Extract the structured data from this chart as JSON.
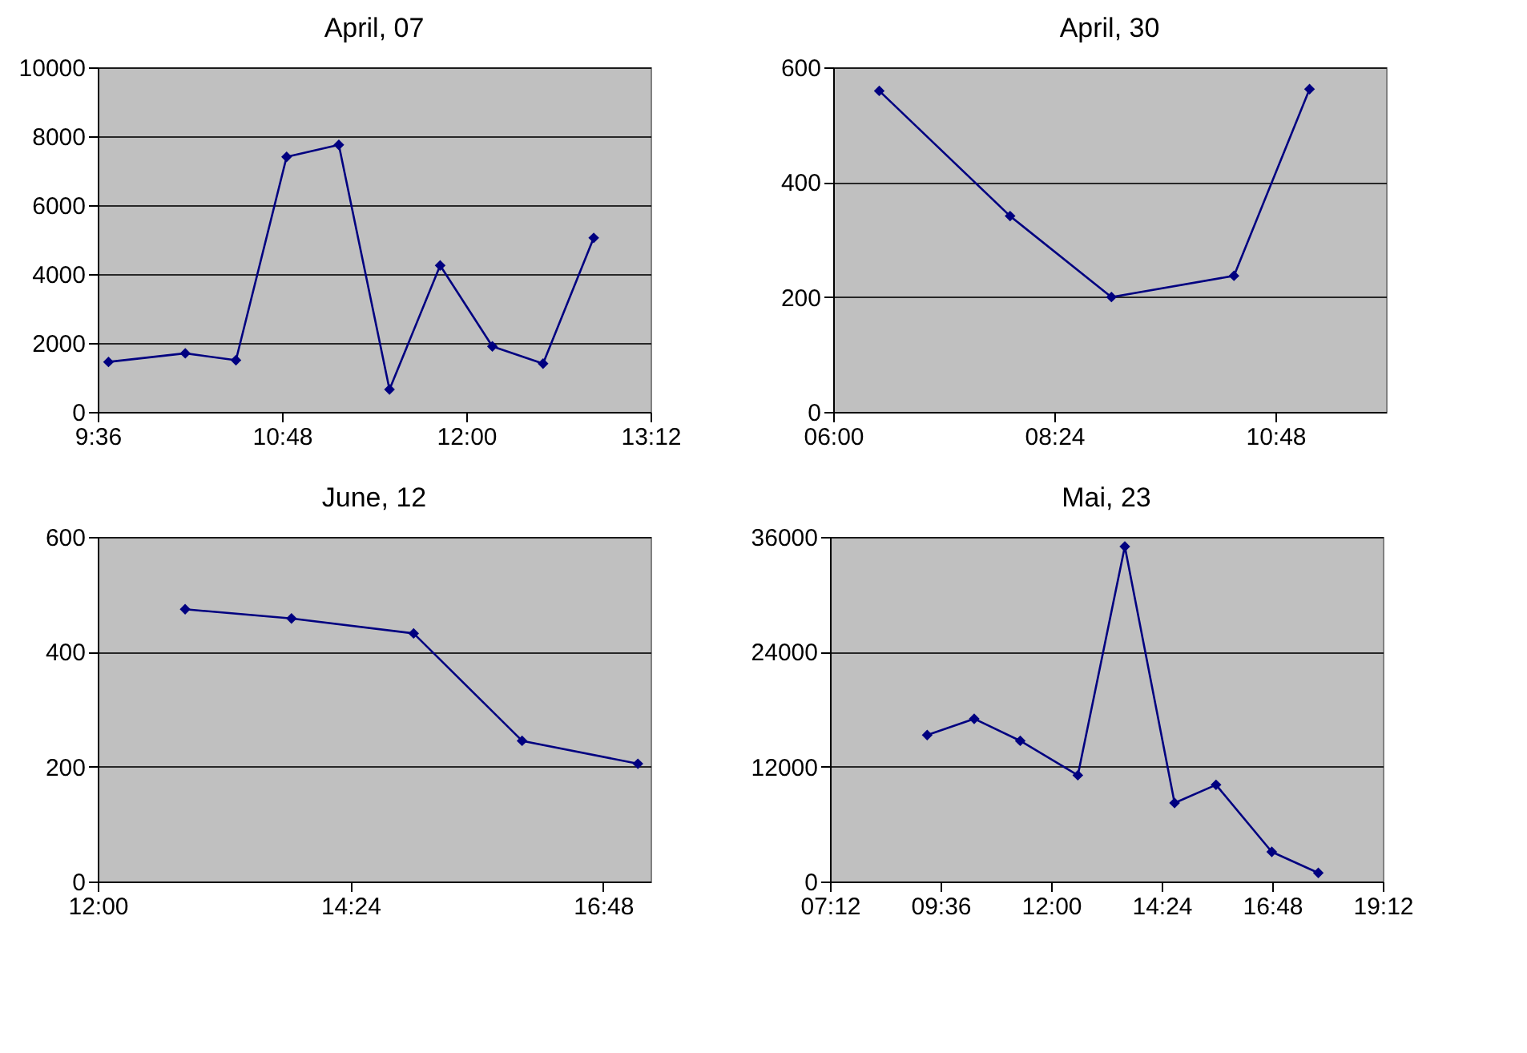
{
  "chart_data": [
    {
      "type": "line",
      "title": "April, 07",
      "x": [
        9.67,
        10.17,
        10.5,
        10.83,
        11.17,
        11.5,
        11.83,
        12.17,
        12.5,
        12.83
      ],
      "series": [
        {
          "color": "#000080",
          "values": [
            1450,
            1700,
            1500,
            7400,
            7750,
            650,
            4250,
            1900,
            1400,
            5050
          ]
        }
      ],
      "xlim": [
        9.6,
        13.2
      ],
      "xticks": [
        {
          "value": 9.6,
          "label": "9:36"
        },
        {
          "value": 10.8,
          "label": "10:48"
        },
        {
          "value": 12,
          "label": "12:00"
        },
        {
          "value": 13.2,
          "label": "13:12"
        }
      ],
      "ylim": [
        0,
        10000
      ],
      "yticks": [
        0,
        2000,
        4000,
        6000,
        8000,
        10000
      ],
      "grid": "y",
      "marker": "diamond"
    },
    {
      "type": "line",
      "title": "April, 30",
      "x": [
        6.5,
        7.92,
        9.02,
        10.35,
        11.17
      ],
      "series": [
        {
          "color": "#000080",
          "values": [
            559,
            341,
            200,
            237,
            562
          ]
        }
      ],
      "xlim": [
        6,
        12
      ],
      "xticks": [
        {
          "value": 6,
          "label": "06:00"
        },
        {
          "value": 8.4,
          "label": "08:24"
        },
        {
          "value": 10.8,
          "label": "10:48"
        }
      ],
      "ylim": [
        0,
        600
      ],
      "yticks": [
        0,
        200,
        400,
        600
      ],
      "grid": "y",
      "marker": "diamond"
    },
    {
      "type": "line",
      "title": "June, 12",
      "x": [
        12.83,
        13.84,
        15.0,
        16.03,
        17.13
      ],
      "series": [
        {
          "color": "#000080",
          "values": [
            474,
            458,
            432,
            245,
            205
          ]
        }
      ],
      "xlim": [
        12,
        17.25
      ],
      "xticks": [
        {
          "value": 12,
          "label": "12:00"
        },
        {
          "value": 14.4,
          "label": "14:24"
        },
        {
          "value": 16.8,
          "label": "16:48"
        }
      ],
      "ylim": [
        0,
        600
      ],
      "yticks": [
        0,
        200,
        400,
        600
      ],
      "grid": "y",
      "marker": "diamond"
    },
    {
      "type": "line",
      "title": "Mai, 23",
      "x": [
        9.31,
        10.33,
        11.33,
        12.58,
        13.6,
        14.68,
        15.58,
        16.79,
        17.8
      ],
      "series": [
        {
          "color": "#000080",
          "values": [
            15300,
            17000,
            14700,
            11100,
            35000,
            8200,
            10100,
            3100,
            900
          ]
        }
      ],
      "xlim": [
        7.2,
        19.2
      ],
      "xticks": [
        {
          "value": 7.2,
          "label": "07:12"
        },
        {
          "value": 9.6,
          "label": "09:36"
        },
        {
          "value": 12,
          "label": "12:00"
        },
        {
          "value": 14.4,
          "label": "14:24"
        },
        {
          "value": 16.8,
          "label": "16:48"
        },
        {
          "value": 19.2,
          "label": "19:12"
        }
      ],
      "ylim": [
        0,
        36000
      ],
      "yticks": [
        0,
        12000,
        24000,
        36000
      ],
      "grid": "y",
      "marker": "diamond"
    }
  ]
}
